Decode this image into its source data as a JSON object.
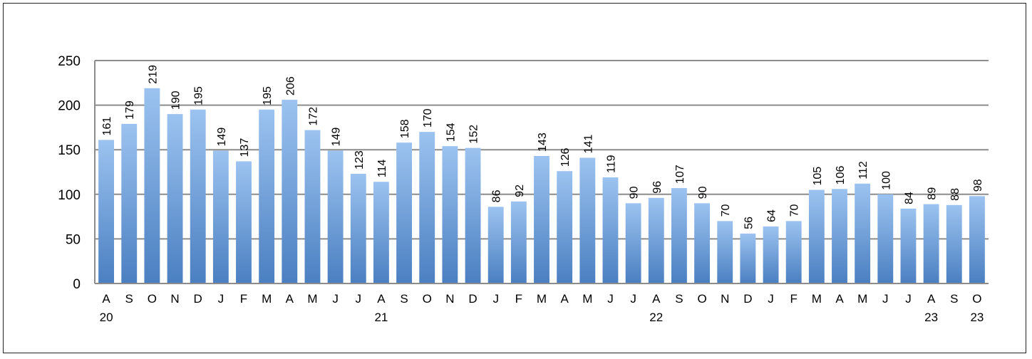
{
  "chart_data": {
    "type": "bar",
    "categories": [
      "A",
      "S",
      "O",
      "N",
      "D",
      "J",
      "F",
      "M",
      "A",
      "M",
      "J",
      "J",
      "A",
      "S",
      "O",
      "N",
      "D",
      "J",
      "F",
      "M",
      "A",
      "M",
      "J",
      "J",
      "A",
      "S",
      "O",
      "N",
      "D",
      "J",
      "F",
      "M",
      "A",
      "M",
      "J",
      "J",
      "A",
      "S",
      "O"
    ],
    "year_labels": [
      "20",
      "",
      "",
      "",
      "",
      "",
      "",
      "",
      "",
      "",
      "",
      "",
      "21",
      "",
      "",
      "",
      "",
      "",
      "",
      "",
      "",
      "",
      "",
      "",
      "22",
      "",
      "",
      "",
      "",
      "",
      "",
      "",
      "",
      "",
      "",
      "",
      "23",
      "",
      "23"
    ],
    "values": [
      161,
      179,
      219,
      190,
      195,
      149,
      137,
      195,
      206,
      172,
      149,
      123,
      114,
      158,
      170,
      154,
      152,
      86,
      92,
      143,
      126,
      141,
      119,
      90,
      96,
      107,
      90,
      70,
      56,
      64,
      70,
      105,
      106,
      112,
      100,
      84,
      89,
      88,
      98
    ],
    "ylim": [
      0,
      250
    ],
    "yticks": [
      "0",
      "50",
      "100",
      "150",
      "200",
      "250"
    ],
    "grid": true,
    "legend": "none",
    "title": "",
    "xlabel": "",
    "ylabel": "",
    "colors": {
      "bar_top": "#9cc3f0",
      "bar_bottom": "#4a7fc1",
      "grid": "#8c8c8c",
      "axis": "#8c8c8c"
    }
  }
}
